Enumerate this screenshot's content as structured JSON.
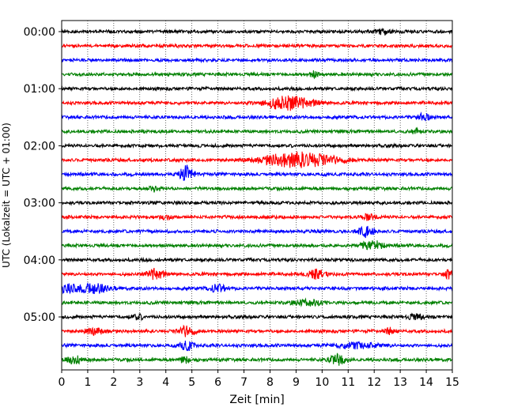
{
  "chart_data": {
    "type": "line",
    "title": "",
    "xlabel": "Zeit  [min]",
    "ylabel": "UTC (Lokalzeit = UTC + 01:00)",
    "xlim": [
      0,
      15
    ],
    "x_ticks": [
      "0",
      "1",
      "2",
      "3",
      "4",
      "5",
      "6",
      "7",
      "8",
      "9",
      "10",
      "11",
      "12",
      "13",
      "14",
      "15"
    ],
    "y_ticks": [
      "00:00",
      "01:00",
      "02:00",
      "03:00",
      "04:00",
      "05:00"
    ],
    "trace_interval_min": 15,
    "trace_count": 24,
    "grid": "vertical dotted at each minute",
    "colors": [
      "#000000",
      "#ff0000",
      "#0000ff",
      "#008000"
    ],
    "events": [
      {
        "trace": 0,
        "x": 12.3,
        "amp": 0.45,
        "w": 0.35
      },
      {
        "trace": 3,
        "x": 9.7,
        "amp": 0.6,
        "w": 0.15
      },
      {
        "trace": 5,
        "x": 8.7,
        "amp": 1.25,
        "w": 0.9
      },
      {
        "trace": 6,
        "x": 13.9,
        "amp": 0.8,
        "w": 0.2
      },
      {
        "trace": 7,
        "x": 13.6,
        "amp": 0.45,
        "w": 0.2
      },
      {
        "trace": 9,
        "x": 9.1,
        "amp": 1.4,
        "w": 1.4
      },
      {
        "trace": 10,
        "x": 4.8,
        "amp": 1.6,
        "w": 0.25
      },
      {
        "trace": 11,
        "x": 3.6,
        "amp": 0.6,
        "w": 0.2
      },
      {
        "trace": 13,
        "x": 4.0,
        "amp": 0.5,
        "w": 0.2
      },
      {
        "trace": 13,
        "x": 11.8,
        "amp": 0.5,
        "w": 0.25
      },
      {
        "trace": 14,
        "x": 11.7,
        "amp": 1.0,
        "w": 0.3
      },
      {
        "trace": 15,
        "x": 11.9,
        "amp": 1.0,
        "w": 0.4
      },
      {
        "trace": 17,
        "x": 3.6,
        "amp": 1.0,
        "w": 0.3
      },
      {
        "trace": 17,
        "x": 9.8,
        "amp": 0.9,
        "w": 0.3
      },
      {
        "trace": 17,
        "x": 14.9,
        "amp": 0.9,
        "w": 0.2
      },
      {
        "trace": 18,
        "x": 0.2,
        "amp": 0.8,
        "w": 0.3
      },
      {
        "trace": 18,
        "x": 1.2,
        "amp": 0.9,
        "w": 0.6
      },
      {
        "trace": 18,
        "x": 6.0,
        "amp": 0.7,
        "w": 0.3
      },
      {
        "trace": 19,
        "x": 9.5,
        "amp": 0.5,
        "w": 0.6
      },
      {
        "trace": 20,
        "x": 2.9,
        "amp": 0.5,
        "w": 0.2
      },
      {
        "trace": 20,
        "x": 13.6,
        "amp": 0.5,
        "w": 0.3
      },
      {
        "trace": 21,
        "x": 1.3,
        "amp": 0.6,
        "w": 0.4
      },
      {
        "trace": 21,
        "x": 4.8,
        "amp": 0.9,
        "w": 0.3
      },
      {
        "trace": 21,
        "x": 12.6,
        "amp": 0.6,
        "w": 0.2
      },
      {
        "trace": 22,
        "x": 4.8,
        "amp": 0.9,
        "w": 0.25
      },
      {
        "trace": 22,
        "x": 11.4,
        "amp": 0.6,
        "w": 0.8
      },
      {
        "trace": 23,
        "x": 0.5,
        "amp": 0.7,
        "w": 0.3
      },
      {
        "trace": 23,
        "x": 4.7,
        "amp": 0.6,
        "w": 0.2
      },
      {
        "trace": 23,
        "x": 10.6,
        "amp": 1.0,
        "w": 0.3
      }
    ]
  }
}
